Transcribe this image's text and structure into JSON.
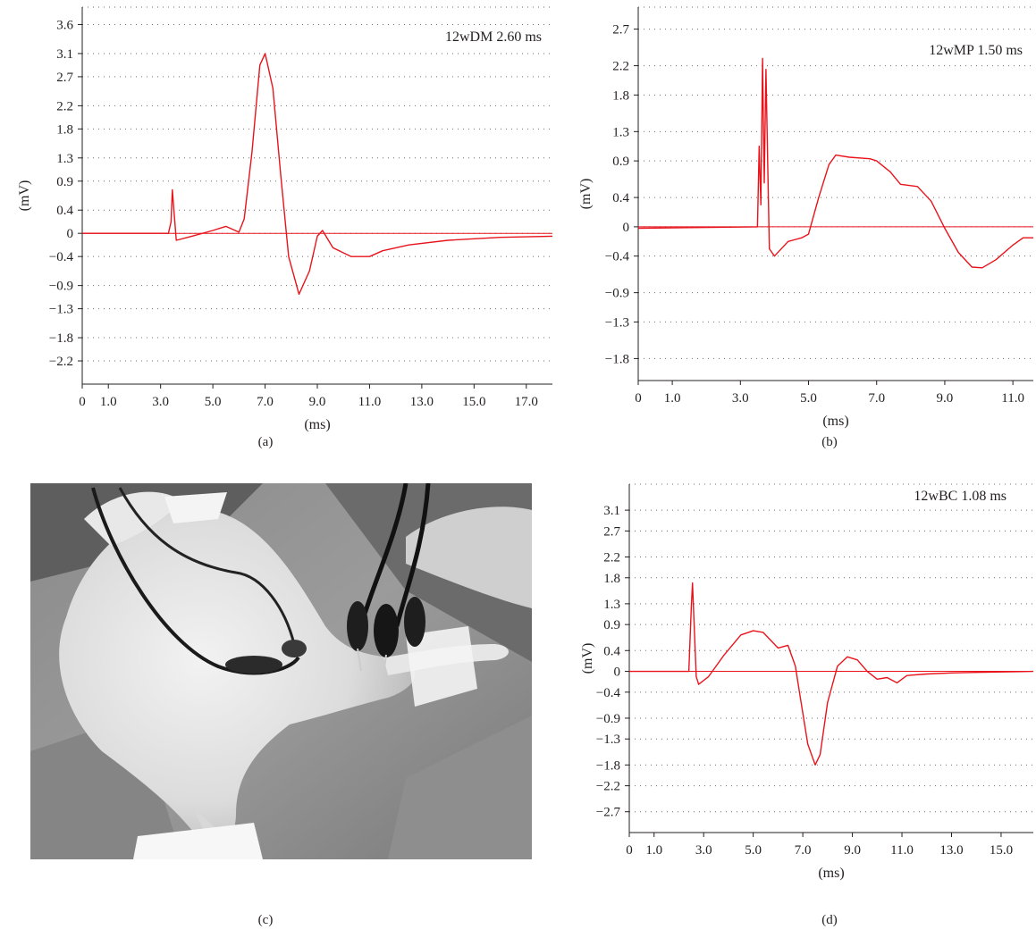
{
  "captions": {
    "a": "(a)",
    "b": "(b)",
    "c": "(c)",
    "d": "(d)"
  },
  "colors": {
    "trace": "#e8131b",
    "axis": "#231f20",
    "grid": "#6d6e71"
  },
  "chart_data": [
    {
      "id": "a",
      "type": "line",
      "annotation": "12wDM 2.60 ms",
      "xlabel": "(ms)",
      "ylabel": "(mV)",
      "xlim": [
        0,
        18
      ],
      "ylim": [
        -2.6,
        3.9
      ],
      "x_ticks": [
        "0",
        "1.0",
        "3.0",
        "5.0",
        "7.0",
        "9.0",
        "11.0",
        "13.0",
        "15.0",
        "17.0"
      ],
      "x_tick_values": [
        0,
        1,
        3,
        5,
        7,
        9,
        11,
        13,
        15,
        17
      ],
      "y_ticks": [
        "3.6",
        "3.1",
        "2.7",
        "2.2",
        "1.8",
        "1.3",
        "0.9",
        "0.4",
        "0",
        "-0.4",
        "-0.9",
        "-1.3",
        "-1.8",
        "-2.2"
      ],
      "y_tick_values": [
        3.6,
        3.1,
        2.7,
        2.2,
        1.8,
        1.3,
        0.9,
        0.4,
        0,
        -0.4,
        -0.9,
        -1.3,
        -1.8,
        -2.2
      ],
      "grid": "dotted",
      "series": [
        {
          "x": [
            0,
            3.3,
            3.4,
            3.45,
            3.5,
            3.6,
            4.2,
            5.0,
            5.5,
            6.0,
            6.2,
            6.5,
            6.8,
            7.0,
            7.3,
            7.6,
            7.9,
            8.3,
            8.7,
            9.0,
            9.2,
            9.6,
            10.3,
            11.0,
            11.5,
            12.5,
            14.0,
            16.0,
            18.0
          ],
          "y": [
            0,
            0,
            0.2,
            0.75,
            0.45,
            -0.12,
            -0.05,
            0.05,
            0.12,
            0.02,
            0.25,
            1.4,
            2.9,
            3.1,
            2.5,
            1.0,
            -0.4,
            -1.05,
            -0.65,
            -0.05,
            0.05,
            -0.25,
            -0.4,
            -0.4,
            -0.3,
            -0.2,
            -0.12,
            -0.07,
            -0.05
          ]
        }
      ]
    },
    {
      "id": "b",
      "type": "line",
      "annotation": "12wMP 1.50 ms",
      "xlabel": "(ms)",
      "ylabel": "(mV)",
      "xlim": [
        0,
        11.6
      ],
      "ylim": [
        -2.1,
        3.0
      ],
      "x_ticks": [
        "0",
        "1.0",
        "3.0",
        "5.0",
        "7.0",
        "9.0",
        "11.0"
      ],
      "x_tick_values": [
        0,
        1,
        3,
        5,
        7,
        9,
        11
      ],
      "y_ticks": [
        "2.7",
        "2.2",
        "1.8",
        "1.3",
        "0.9",
        "0.4",
        "0",
        "-0.4",
        "-0.9",
        "-1.3",
        "-1.8"
      ],
      "y_tick_values": [
        2.7,
        2.2,
        1.8,
        1.3,
        0.9,
        0.4,
        0,
        -0.4,
        -0.9,
        -1.3,
        -1.8
      ],
      "grid": "dotted",
      "series": [
        {
          "x": [
            0,
            3.5,
            3.55,
            3.6,
            3.65,
            3.7,
            3.75,
            3.8,
            3.85,
            4.0,
            4.4,
            4.8,
            5.0,
            5.3,
            5.6,
            5.8,
            6.2,
            6.8,
            7.0,
            7.4,
            7.7,
            8.2,
            8.6,
            9.0,
            9.4,
            9.8,
            10.1,
            10.5,
            11.0,
            11.3,
            11.6
          ],
          "y": [
            -0.02,
            0,
            1.1,
            0.3,
            2.3,
            0.6,
            2.15,
            0.9,
            -0.3,
            -0.4,
            -0.2,
            -0.15,
            -0.1,
            0.4,
            0.85,
            0.98,
            0.95,
            0.93,
            0.9,
            0.75,
            0.58,
            0.55,
            0.35,
            -0.02,
            -0.35,
            -0.55,
            -0.56,
            -0.45,
            -0.25,
            -0.15,
            -0.15
          ]
        }
      ]
    },
    {
      "id": "d",
      "type": "line",
      "annotation": "12wBC 1.08 ms",
      "xlabel": "(ms)",
      "ylabel": "(mV)",
      "xlim": [
        0,
        16.3
      ],
      "ylim": [
        -3.1,
        3.6
      ],
      "x_ticks": [
        "0",
        "1.0",
        "3.0",
        "5.0",
        "7.0",
        "9.0",
        "11.0",
        "13.0",
        "15.0"
      ],
      "x_tick_values": [
        0,
        1,
        3,
        5,
        7,
        9,
        11,
        13,
        15
      ],
      "y_ticks": [
        "3.1",
        "2.7",
        "2.2",
        "1.8",
        "1.3",
        "0.9",
        "0.4",
        "0",
        "-0.4",
        "-0.9",
        "-1.3",
        "-1.8",
        "-2.2",
        "-2.7"
      ],
      "y_tick_values": [
        3.1,
        2.7,
        2.2,
        1.8,
        1.3,
        0.9,
        0.4,
        0,
        -0.4,
        -0.9,
        -1.3,
        -1.8,
        -2.2,
        -2.7
      ],
      "grid": "dotted",
      "series": [
        {
          "x": [
            0,
            2.4,
            2.5,
            2.55,
            2.6,
            2.7,
            2.8,
            3.2,
            3.8,
            4.5,
            5.0,
            5.4,
            6.0,
            6.4,
            6.7,
            6.9,
            7.2,
            7.5,
            7.7,
            8.0,
            8.4,
            8.8,
            9.2,
            9.6,
            10.0,
            10.4,
            10.8,
            11.2,
            12.0,
            13.0,
            14.0,
            16.3
          ],
          "y": [
            0,
            0,
            1.2,
            1.7,
            1.1,
            -0.1,
            -0.25,
            -0.1,
            0.3,
            0.7,
            0.78,
            0.75,
            0.45,
            0.5,
            0.1,
            -0.5,
            -1.4,
            -1.8,
            -1.6,
            -0.6,
            0.1,
            0.28,
            0.22,
            0.0,
            -0.15,
            -0.12,
            -0.22,
            -0.08,
            -0.05,
            -0.03,
            -0.02,
            0.0
          ]
        }
      ]
    }
  ]
}
